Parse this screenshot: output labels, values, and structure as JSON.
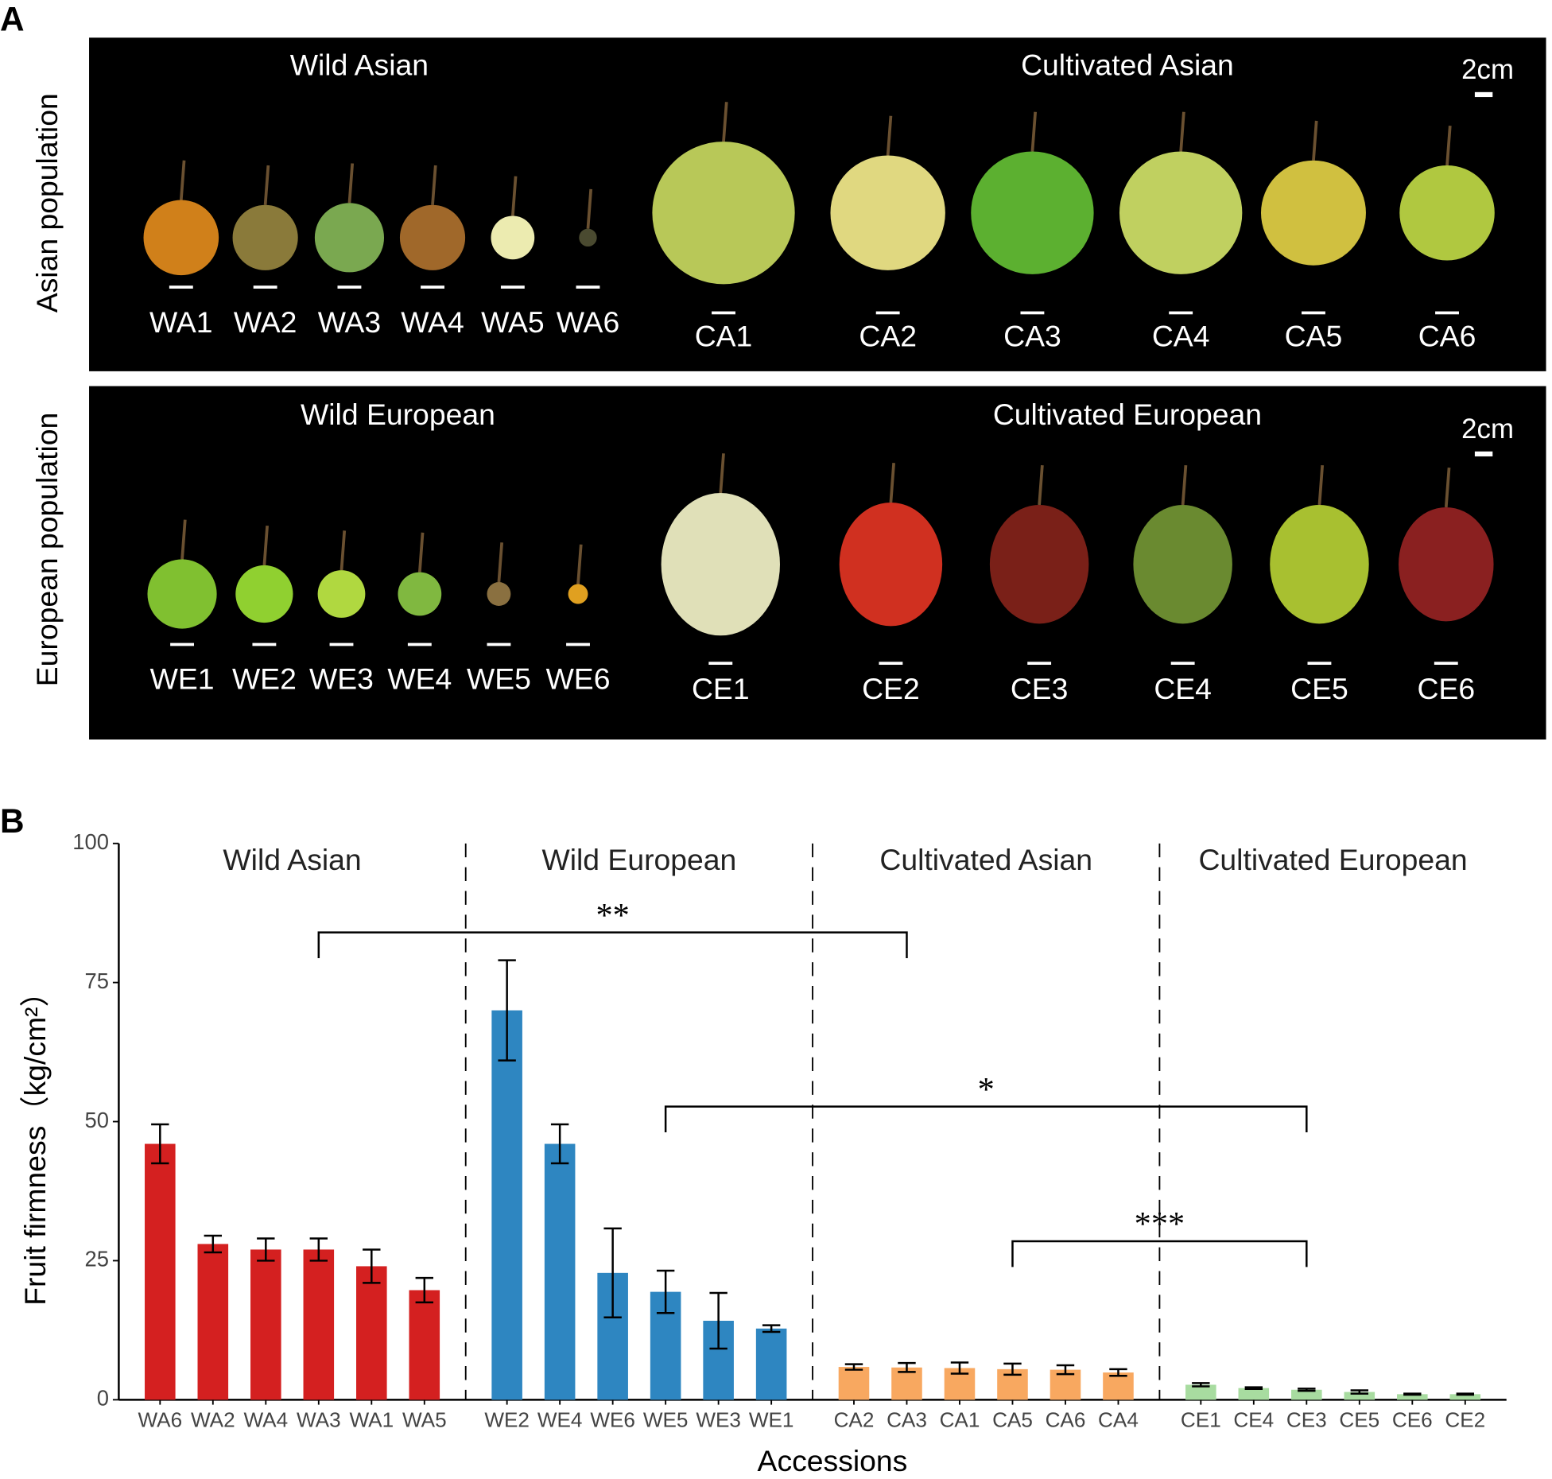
{
  "panel_labels": [
    "A",
    "B"
  ],
  "photos": {
    "rows": [
      {
        "side_label": "Asian population",
        "scale_label": "2cm",
        "groups": [
          {
            "title": "Wild Asian",
            "items": [
              "WA1",
              "WA2",
              "WA3",
              "WA4",
              "WA5",
              "WA6"
            ]
          },
          {
            "title": "Cultivated Asian",
            "items": [
              "CA1",
              "CA2",
              "CA3",
              "CA4",
              "CA5",
              "CA6"
            ]
          }
        ]
      },
      {
        "side_label": "European population",
        "scale_label": "2cm",
        "groups": [
          {
            "title": "Wild European",
            "items": [
              "WE1",
              "WE2",
              "WE3",
              "WE4",
              "WE5",
              "WE6"
            ]
          },
          {
            "title": "Cultivated European",
            "items": [
              "CE1",
              "CE2",
              "CE3",
              "CE4",
              "CE5",
              "CE6"
            ]
          }
        ]
      }
    ]
  },
  "chart_data": {
    "type": "bar",
    "x_label": "Accessions",
    "y_label": "Fruit firmness（kg/cm²）",
    "categories": [
      "WA6",
      "WA2",
      "WA4",
      "WA3",
      "WA1",
      "WA5",
      "WE2",
      "WE4",
      "WE6",
      "WE5",
      "WE3",
      "WE1",
      "CA2",
      "CA3",
      "CA1",
      "CA5",
      "CA6",
      "CA4",
      "CE1",
      "CE4",
      "CE3",
      "CE5",
      "CE6",
      "CE2"
    ],
    "series": [
      {
        "name": "Wild Asian",
        "color": "#d42020",
        "values": [
          46,
          28,
          27,
          27,
          24,
          19.7,
          null,
          null,
          null,
          null,
          null,
          null,
          null,
          null,
          null,
          null,
          null,
          null,
          null,
          null,
          null,
          null,
          null,
          null
        ],
        "errors": [
          3.5,
          1.5,
          2,
          2,
          3,
          2.2,
          null,
          null,
          null,
          null,
          null,
          null,
          null,
          null,
          null,
          null,
          null,
          null,
          null,
          null,
          null,
          null,
          null,
          null
        ]
      },
      {
        "name": "Wild European",
        "color": "#2e86c1",
        "values": [
          null,
          null,
          null,
          null,
          null,
          null,
          70,
          46,
          22.8,
          19.4,
          14.2,
          12.8,
          null,
          null,
          null,
          null,
          null,
          null,
          null,
          null,
          null,
          null,
          null,
          null
        ],
        "errors": [
          null,
          null,
          null,
          null,
          null,
          null,
          9,
          3.5,
          8,
          3.8,
          5,
          0.6,
          null,
          null,
          null,
          null,
          null,
          null,
          null,
          null,
          null,
          null,
          null,
          null
        ]
      },
      {
        "name": "Cultivated Asian",
        "color": "#f8a860",
        "values": [
          null,
          null,
          null,
          null,
          null,
          null,
          null,
          null,
          null,
          null,
          null,
          null,
          5.9,
          5.8,
          5.7,
          5.5,
          5.4,
          4.9,
          null,
          null,
          null,
          null,
          null,
          null
        ],
        "errors": [
          null,
          null,
          null,
          null,
          null,
          null,
          null,
          null,
          null,
          null,
          null,
          null,
          0.5,
          0.8,
          1,
          1,
          0.8,
          0.6,
          null,
          null,
          null,
          null,
          null,
          null
        ]
      },
      {
        "name": "Cultivated European",
        "color": "#a8dca0",
        "values": [
          null,
          null,
          null,
          null,
          null,
          null,
          null,
          null,
          null,
          null,
          null,
          null,
          null,
          null,
          null,
          null,
          null,
          null,
          2.7,
          2.1,
          1.8,
          1.4,
          1,
          1
        ],
        "errors": [
          null,
          null,
          null,
          null,
          null,
          null,
          null,
          null,
          null,
          null,
          null,
          null,
          null,
          null,
          null,
          null,
          null,
          null,
          0.3,
          0.15,
          0.2,
          0.3,
          0.1,
          0.1
        ]
      }
    ],
    "ylim": [
      0,
      100
    ],
    "yticks": [
      0,
      25,
      50,
      75,
      100
    ],
    "brackets": [
      {
        "label": "**",
        "from": "WA3",
        "to": "CA3",
        "y": 84
      },
      {
        "label": "*",
        "from": "WE5",
        "to": "CE3",
        "y": 52.7
      },
      {
        "label": "***",
        "from": "CA5",
        "to": "CE3",
        "y": 28.5
      }
    ]
  }
}
